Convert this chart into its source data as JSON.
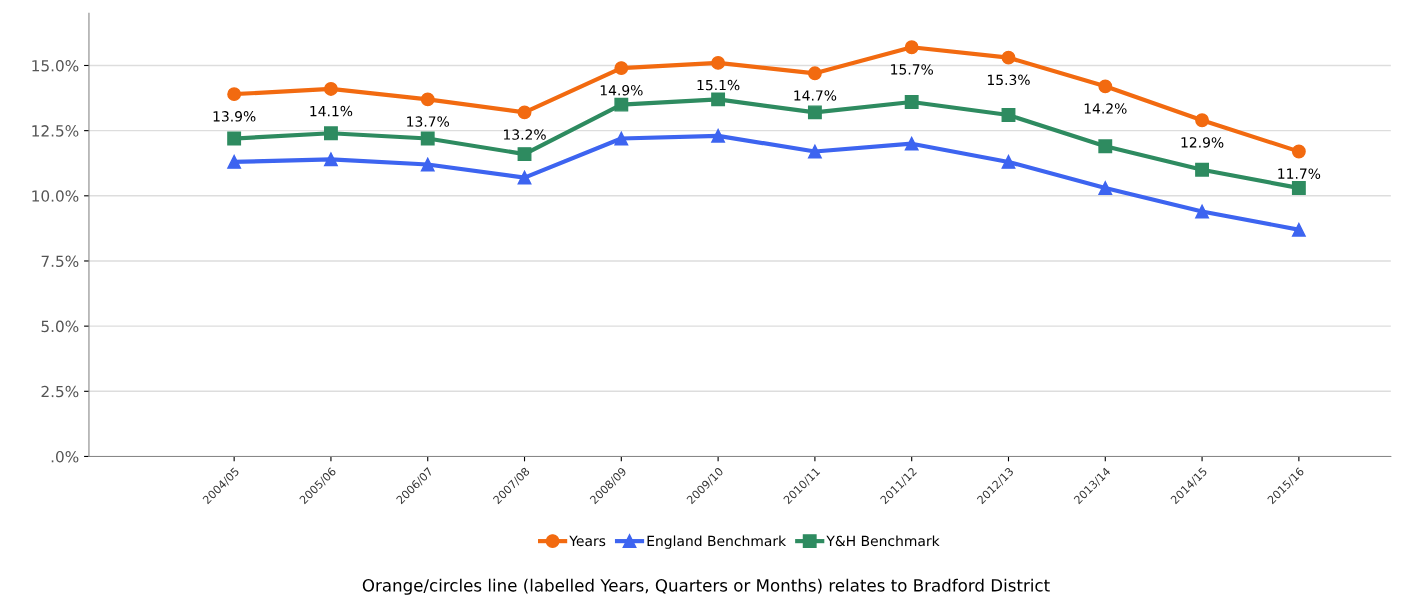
{
  "chart_data": {
    "type": "line",
    "categories": [
      "2004/05",
      "2005/06",
      "2006/07",
      "2007/08",
      "2008/09",
      "2009/10",
      "2010/11",
      "2011/12",
      "2012/13",
      "2013/14",
      "2014/15",
      "2015/16"
    ],
    "series": [
      {
        "name": "Years",
        "color": "#f26a10",
        "marker": "circle",
        "values": [
          13.9,
          14.1,
          13.7,
          13.2,
          14.9,
          15.1,
          14.7,
          15.7,
          15.3,
          14.2,
          12.9,
          11.7
        ],
        "value_labels": [
          "13.9%",
          "14.1%",
          "13.7%",
          "13.2%",
          "14.9%",
          "15.1%",
          "14.7%",
          "15.7%",
          "15.3%",
          "14.2%",
          "12.9%",
          "11.7%"
        ]
      },
      {
        "name": "England Benchmark",
        "color": "#3d64f0",
        "marker": "triangle",
        "values": [
          11.3,
          11.4,
          11.2,
          10.7,
          12.2,
          12.3,
          11.7,
          12.0,
          11.3,
          10.3,
          9.4,
          8.7
        ]
      },
      {
        "name": "Y&H Benchmark",
        "color": "#2e8b60",
        "marker": "square",
        "values": [
          12.2,
          12.4,
          12.2,
          11.6,
          13.5,
          13.7,
          13.2,
          13.6,
          13.1,
          11.9,
          11.0,
          10.3
        ]
      }
    ],
    "ylim": [
      0,
      17
    ],
    "yticks": [
      {
        "value": 0,
        "label": ".0%"
      },
      {
        "value": 2.5,
        "label": "2.5%"
      },
      {
        "value": 5,
        "label": "5.0%"
      },
      {
        "value": 7.5,
        "label": "7.5%"
      },
      {
        "value": 10,
        "label": "10.0%"
      },
      {
        "value": 12.5,
        "label": "12.5%"
      },
      {
        "value": 15,
        "label": "15.0%"
      }
    ],
    "grid": "y",
    "legend": "bottom",
    "line_style": "solid",
    "annotations": [
      "Orange/circles line (labelled Years, Quarters or Months) relates to Bradford District"
    ]
  }
}
